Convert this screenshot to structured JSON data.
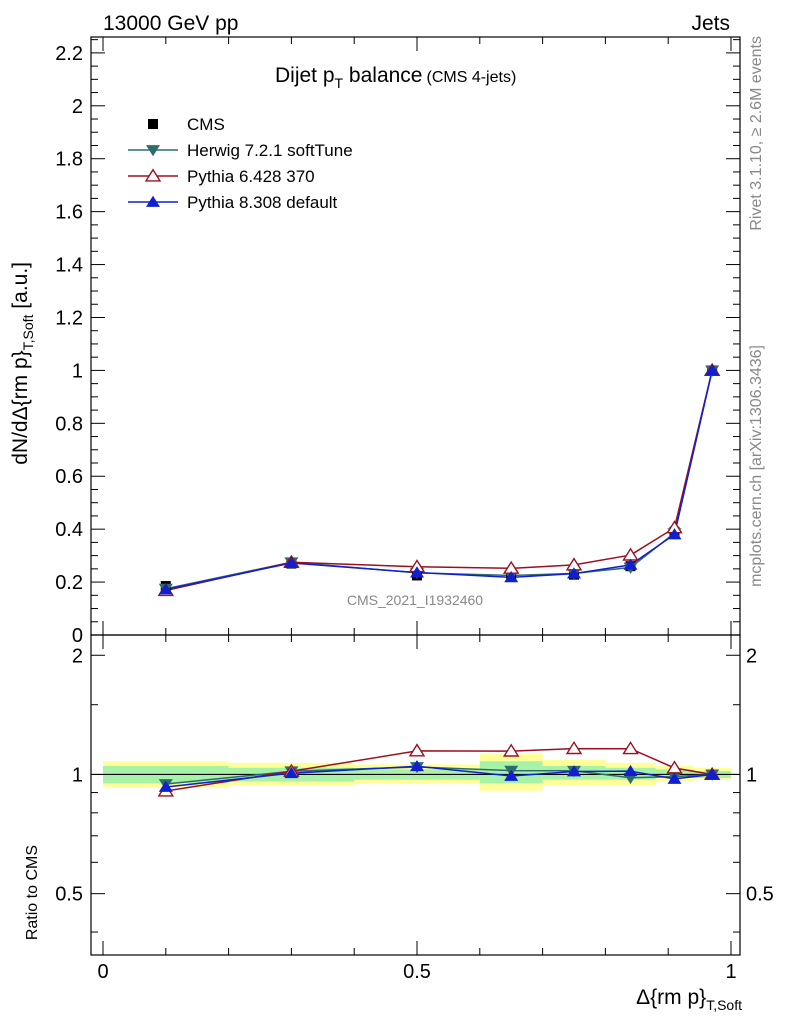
{
  "header": {
    "left": "13000 GeV pp",
    "right": "Jets"
  },
  "side_labels": {
    "rivet": "Rivet 3.1.10, ≥ 2.6M events",
    "mcplots": "mcplots.cern.ch [arXiv:1306.3436]"
  },
  "watermark": "CMS_2021_I1932460",
  "chart_data": {
    "type": "line",
    "title": "Dijet p",
    "title_sub": "T",
    "title_rest": " balance",
    "title_small": "(CMS 4-jets)",
    "ylabel": "dN/dΔ{rm p}",
    "ylabel_sub": "T,Soft",
    "ylabel_unit": " [a.u.]",
    "xlabel": "Δ{rm p}",
    "xlabel_sub": "T,Soft",
    "ratio_ylabel": "Ratio to CMS",
    "xlim": [
      0,
      1
    ],
    "ylim": [
      0,
      2.26
    ],
    "ratio_ylim": [
      0.35,
      2.25
    ],
    "x_ticks": [
      "0",
      "0.5",
      "1"
    ],
    "y_ticks": [
      "0",
      "0.2",
      "0.4",
      "0.6",
      "0.8",
      "1",
      "1.2",
      "1.4",
      "1.6",
      "1.8",
      "2",
      "2.2"
    ],
    "ratio_ticks": [
      "0.5",
      "1",
      "2"
    ],
    "x": [
      0.1,
      0.3,
      0.5,
      0.65,
      0.75,
      0.84,
      0.91,
      0.97
    ],
    "data": {
      "name": "CMS",
      "values": [
        0.185,
        0.27,
        0.225,
        0.22,
        0.228,
        0.26,
        0.39,
        1.0
      ]
    },
    "uncertainty_bands": [
      {
        "xmin": 0.0,
        "xmax": 0.2,
        "inner": [
          0.95,
          1.05
        ],
        "outer": [
          0.93,
          1.08
        ]
      },
      {
        "xmin": 0.2,
        "xmax": 0.4,
        "inner": [
          0.96,
          1.04
        ],
        "outer": [
          0.94,
          1.07
        ]
      },
      {
        "xmin": 0.4,
        "xmax": 0.6,
        "inner": [
          0.97,
          1.03
        ],
        "outer": [
          0.95,
          1.06
        ]
      },
      {
        "xmin": 0.6,
        "xmax": 0.7,
        "inner": [
          0.95,
          1.08
        ],
        "outer": [
          0.91,
          1.13
        ]
      },
      {
        "xmin": 0.7,
        "xmax": 0.8,
        "inner": [
          0.97,
          1.05
        ],
        "outer": [
          0.94,
          1.09
        ]
      },
      {
        "xmin": 0.8,
        "xmax": 0.88,
        "inner": [
          0.97,
          1.04
        ],
        "outer": [
          0.94,
          1.07
        ]
      },
      {
        "xmin": 0.88,
        "xmax": 0.94,
        "inner": [
          0.98,
          1.03
        ],
        "outer": [
          0.96,
          1.05
        ]
      },
      {
        "xmin": 0.94,
        "xmax": 1.0,
        "inner": [
          0.98,
          1.02
        ],
        "outer": [
          0.97,
          1.04
        ]
      }
    ],
    "series": [
      {
        "name": "Herwig 7.2.1 softTune",
        "color": "#2e6b6b",
        "marker": "triangle-down",
        "values": [
          0.175,
          0.275,
          0.235,
          0.225,
          0.233,
          0.255,
          0.385,
          1.0
        ]
      },
      {
        "name": "Pythia 6.428 370",
        "color": "#9b1022",
        "marker": "triangle-up-open",
        "values": [
          0.168,
          0.275,
          0.258,
          0.252,
          0.265,
          0.302,
          0.405,
          1.0
        ]
      },
      {
        "name": "Pythia 8.308 default",
        "color": "#1020d0",
        "marker": "triangle-up",
        "values": [
          0.172,
          0.272,
          0.236,
          0.218,
          0.232,
          0.265,
          0.38,
          1.0
        ]
      }
    ],
    "legend_placement": "top-left",
    "grid": false
  }
}
